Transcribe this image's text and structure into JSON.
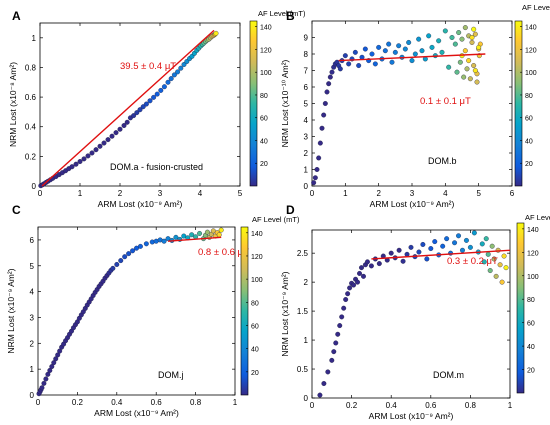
{
  "chart_data": [
    {
      "type": "scatter",
      "panel_label": "A",
      "sample_label": "DOM.a - fusion-crusted",
      "fit_label": "39.5 ± 0.4 μT",
      "xlabel": "ARM Lost (x10⁻⁹ Am²)",
      "ylabel": "NRM Lost (x10⁻⁸ Am²)",
      "xlim": [
        0,
        5
      ],
      "ylim": [
        0,
        1.1
      ],
      "xticks": [
        "0",
        "1",
        "2",
        "3",
        "4",
        "5"
      ],
      "yticks": [
        "0",
        "0.2",
        "0.4",
        "0.6",
        "0.8",
        "1"
      ],
      "xtick_values": [
        0,
        1,
        2,
        3,
        4,
        5
      ],
      "ytick_values": [
        0,
        0.2,
        0.4,
        0.6,
        0.8,
        1.0
      ],
      "fit_line": {
        "x": [
          0.05,
          4.35
        ],
        "y": [
          0.0,
          1.05
        ]
      },
      "points": {
        "x": [
          0.02,
          0.06,
          0.1,
          0.15,
          0.2,
          0.26,
          0.32,
          0.4,
          0.48,
          0.56,
          0.64,
          0.72,
          0.8,
          0.9,
          1.0,
          1.1,
          1.2,
          1.3,
          1.4,
          1.5,
          1.6,
          1.7,
          1.8,
          1.9,
          2.0,
          2.1,
          2.18,
          2.26,
          2.34,
          2.42,
          2.5,
          2.58,
          2.66,
          2.75,
          2.84,
          2.93,
          3.02,
          3.11,
          3.2,
          3.28,
          3.36,
          3.44,
          3.52,
          3.6,
          3.67,
          3.74,
          3.8,
          3.86,
          3.92,
          3.97,
          4.02,
          4.06,
          4.1,
          4.14,
          4.18,
          4.22,
          4.26,
          4.3,
          4.33,
          4.36,
          4.38,
          4.4
        ],
        "y": [
          0.002,
          0.008,
          0.015,
          0.024,
          0.032,
          0.042,
          0.052,
          0.064,
          0.077,
          0.09,
          0.103,
          0.117,
          0.13,
          0.147,
          0.165,
          0.183,
          0.203,
          0.223,
          0.245,
          0.268,
          0.29,
          0.313,
          0.336,
          0.36,
          0.383,
          0.408,
          0.43,
          0.46,
          0.475,
          0.495,
          0.515,
          0.535,
          0.553,
          0.575,
          0.598,
          0.62,
          0.645,
          0.67,
          0.7,
          0.725,
          0.75,
          0.77,
          0.795,
          0.82,
          0.84,
          0.86,
          0.875,
          0.895,
          0.915,
          0.93,
          0.945,
          0.955,
          0.965,
          0.975,
          0.985,
          0.99,
          1.0,
          1.01,
          1.015,
          1.02,
          1.025,
          1.03
        ],
        "af": [
          0,
          0,
          0,
          0,
          0,
          0,
          0,
          0,
          0,
          0,
          0,
          0,
          0,
          0,
          0,
          0,
          0,
          0,
          0,
          0,
          0,
          0,
          0,
          0,
          0,
          0,
          0,
          2,
          4,
          6,
          8,
          10,
          12,
          14,
          16,
          18,
          20,
          22,
          25,
          28,
          31,
          34,
          37,
          40,
          44,
          48,
          52,
          56,
          60,
          65,
          70,
          75,
          80,
          86,
          92,
          98,
          104,
          110,
          117,
          124,
          131,
          140
        ]
      },
      "colorbar": {
        "title": "AF Level (mT)",
        "ticks": [
          "20",
          "40",
          "60",
          "80",
          "100",
          "120",
          "140"
        ],
        "tick_values": [
          20,
          40,
          60,
          80,
          100,
          120,
          140
        ],
        "range": [
          0,
          145
        ]
      }
    },
    {
      "type": "scatter",
      "panel_label": "B",
      "sample_label": "DOM.b",
      "fit_label": "0.1 ± 0.1 μT",
      "xlabel": "ARM Lost (x10⁻⁹ Am²)",
      "ylabel": "NRM Lost (x10⁻¹⁰ Am²)",
      "xlim": [
        0,
        6
      ],
      "ylim": [
        0,
        10
      ],
      "xticks": [
        "0",
        "1",
        "2",
        "3",
        "4",
        "5",
        "6"
      ],
      "yticks": [
        "0",
        "1",
        "2",
        "3",
        "4",
        "5",
        "6",
        "7",
        "8",
        "9"
      ],
      "xtick_values": [
        0,
        1,
        2,
        3,
        4,
        5,
        6
      ],
      "ytick_values": [
        0,
        1,
        2,
        3,
        4,
        5,
        6,
        7,
        8,
        9
      ],
      "fit_line": {
        "x": [
          0.8,
          5.2
        ],
        "y": [
          7.6,
          8.0
        ]
      },
      "points": {
        "x": [
          0.05,
          0.1,
          0.15,
          0.2,
          0.25,
          0.3,
          0.35,
          0.4,
          0.45,
          0.5,
          0.55,
          0.6,
          0.65,
          0.7,
          0.75,
          0.8,
          0.85,
          0.9,
          1.0,
          1.1,
          1.2,
          1.3,
          1.4,
          1.5,
          1.6,
          1.7,
          1.8,
          1.9,
          2.0,
          2.1,
          2.2,
          2.3,
          2.4,
          2.5,
          2.6,
          2.7,
          2.8,
          2.9,
          3.0,
          3.1,
          3.2,
          3.3,
          3.4,
          3.5,
          3.6,
          3.7,
          3.8,
          3.9,
          4.0,
          4.1,
          4.2,
          4.3,
          4.35,
          4.4,
          4.45,
          4.5,
          4.55,
          4.6,
          4.65,
          4.7,
          4.75,
          4.8,
          4.85,
          4.9,
          4.95,
          5.0,
          5.02,
          5.05,
          4.6,
          4.7,
          4.8,
          4.9,
          5.0,
          4.5,
          4.85,
          4.95
        ],
        "y": [
          0.2,
          0.5,
          1.0,
          1.7,
          2.6,
          3.5,
          4.3,
          5.0,
          5.7,
          6.2,
          6.6,
          6.9,
          7.2,
          7.4,
          7.5,
          7.3,
          7.1,
          7.6,
          7.9,
          7.4,
          7.7,
          8.1,
          7.3,
          7.8,
          8.3,
          7.6,
          8.0,
          7.4,
          8.4,
          7.7,
          8.2,
          8.6,
          7.5,
          8.1,
          8.5,
          7.8,
          8.3,
          8.7,
          7.6,
          8.0,
          8.9,
          8.2,
          7.7,
          9.1,
          8.4,
          7.9,
          8.8,
          8.1,
          9.4,
          7.2,
          9.0,
          8.6,
          6.9,
          9.3,
          7.5,
          8.9,
          6.6,
          9.6,
          7.1,
          9.1,
          6.5,
          8.7,
          7.3,
          9.2,
          6.8,
          8.3,
          7.9,
          8.6,
          8.2,
          7.6,
          9.0,
          7.0,
          8.4,
          7.9,
          9.5,
          6.3
        ],
        "af": [
          0,
          0,
          0,
          0,
          0,
          0,
          0,
          0,
          0,
          0,
          0,
          1,
          2,
          3,
          4,
          5,
          6,
          7,
          8,
          9,
          10,
          11,
          12,
          14,
          16,
          18,
          20,
          22,
          24,
          26,
          28,
          30,
          32,
          34,
          36,
          38,
          40,
          42,
          44,
          46,
          48,
          50,
          52,
          55,
          58,
          61,
          64,
          67,
          70,
          73,
          76,
          79,
          82,
          85,
          88,
          91,
          94,
          97,
          100,
          103,
          106,
          109,
          112,
          115,
          118,
          121,
          124,
          127,
          130,
          133,
          136,
          139,
          141,
          143,
          145,
          110
        ]
      },
      "colorbar": {
        "title": "AF Level (mT)",
        "ticks": [
          "20",
          "40",
          "60",
          "80",
          "100",
          "120",
          "140"
        ],
        "tick_values": [
          20,
          40,
          60,
          80,
          100,
          120,
          140
        ],
        "range": [
          0,
          145
        ]
      }
    },
    {
      "type": "scatter",
      "panel_label": "C",
      "sample_label": "DOM.j",
      "fit_label": "0.8 ± 0.6 μT",
      "xlabel": "ARM Lost (x10⁻⁹ Am²)",
      "ylabel": "NRM Lost (x10⁻⁹ Am²)",
      "xlim": [
        0,
        1
      ],
      "ylim": [
        0,
        6.5
      ],
      "xticks": [
        "0",
        "0.2",
        "0.4",
        "0.6",
        "0.8",
        "1"
      ],
      "yticks": [
        "0",
        "1",
        "2",
        "3",
        "4",
        "5",
        "6"
      ],
      "xtick_values": [
        0,
        0.2,
        0.4,
        0.6,
        0.8,
        1.0
      ],
      "ytick_values": [
        0,
        1,
        2,
        3,
        4,
        5,
        6
      ],
      "fit_line": {
        "x": [
          0.66,
          0.93
        ],
        "y": [
          5.95,
          6.1
        ]
      },
      "points": {
        "x": [
          0.005,
          0.01,
          0.015,
          0.02,
          0.03,
          0.04,
          0.05,
          0.06,
          0.07,
          0.08,
          0.09,
          0.1,
          0.11,
          0.12,
          0.13,
          0.14,
          0.15,
          0.16,
          0.17,
          0.18,
          0.19,
          0.2,
          0.21,
          0.22,
          0.23,
          0.24,
          0.25,
          0.26,
          0.27,
          0.28,
          0.29,
          0.3,
          0.31,
          0.32,
          0.33,
          0.34,
          0.35,
          0.36,
          0.37,
          0.38,
          0.4,
          0.42,
          0.44,
          0.46,
          0.48,
          0.5,
          0.52,
          0.55,
          0.58,
          0.6,
          0.62,
          0.64,
          0.66,
          0.68,
          0.7,
          0.72,
          0.74,
          0.76,
          0.78,
          0.8,
          0.82,
          0.84,
          0.85,
          0.86,
          0.87,
          0.88,
          0.89,
          0.9,
          0.91,
          0.92,
          0.93
        ],
        "y": [
          0.05,
          0.12,
          0.2,
          0.28,
          0.45,
          0.62,
          0.8,
          0.95,
          1.1,
          1.25,
          1.4,
          1.55,
          1.7,
          1.85,
          1.97,
          2.1,
          2.22,
          2.35,
          2.47,
          2.6,
          2.72,
          2.83,
          2.97,
          3.1,
          3.22,
          3.35,
          3.48,
          3.6,
          3.72,
          3.85,
          3.97,
          4.08,
          4.2,
          4.3,
          4.4,
          4.52,
          4.62,
          4.72,
          4.82,
          4.9,
          5.05,
          5.2,
          5.35,
          5.47,
          5.58,
          5.68,
          5.75,
          5.85,
          5.92,
          5.95,
          6.0,
          5.95,
          6.05,
          5.98,
          6.1,
          6.02,
          6.15,
          6.08,
          6.2,
          6.12,
          6.25,
          6.05,
          6.18,
          6.3,
          6.1,
          6.22,
          6.35,
          6.15,
          6.28,
          6.2,
          6.38
        ],
        "af": [
          0,
          0,
          0,
          0,
          0,
          0,
          0,
          0,
          0,
          0,
          0,
          0,
          0,
          0,
          0,
          0,
          0,
          0,
          0,
          0,
          0,
          0,
          0,
          0,
          0,
          0,
          0,
          0,
          0,
          0,
          0,
          0,
          0,
          0,
          0,
          0,
          0,
          2,
          4,
          6,
          8,
          10,
          12,
          14,
          16,
          18,
          20,
          22,
          24,
          26,
          30,
          34,
          38,
          42,
          46,
          50,
          55,
          60,
          66,
          72,
          78,
          84,
          90,
          96,
          102,
          108,
          114,
          120,
          126,
          133,
          140
        ]
      },
      "colorbar": {
        "title": "AF Level (mT)",
        "ticks": [
          "20",
          "40",
          "60",
          "80",
          "100",
          "120",
          "140"
        ],
        "tick_values": [
          20,
          40,
          60,
          80,
          100,
          120,
          140
        ],
        "range": [
          0,
          145
        ]
      }
    },
    {
      "type": "scatter",
      "panel_label": "D",
      "sample_label": "DOM.m",
      "fit_label": "0.3 ± 0.2 μT",
      "xlabel": "ARM Lost (x10⁻⁹ Am²)",
      "ylabel": "NRM Lost (x10⁻⁹ Am²)",
      "xlim": [
        0,
        1
      ],
      "ylim": [
        0,
        2.9
      ],
      "xticks": [
        "0",
        "0.2",
        "0.4",
        "0.6",
        "0.8",
        "1"
      ],
      "yticks": [
        "0",
        "0.5",
        "1",
        "1.5",
        "2",
        "2.5"
      ],
      "xtick_values": [
        0,
        0.2,
        0.4,
        0.6,
        0.8,
        1.0
      ],
      "ytick_values": [
        0,
        0.5,
        1.0,
        1.5,
        2.0,
        2.5
      ],
      "fit_line": {
        "x": [
          0.3,
          1.0
        ],
        "y": [
          2.4,
          2.55
        ]
      },
      "points": {
        "x": [
          0.04,
          0.06,
          0.08,
          0.1,
          0.11,
          0.12,
          0.13,
          0.14,
          0.15,
          0.16,
          0.17,
          0.18,
          0.19,
          0.2,
          0.21,
          0.22,
          0.23,
          0.24,
          0.25,
          0.26,
          0.27,
          0.28,
          0.3,
          0.32,
          0.34,
          0.36,
          0.38,
          0.4,
          0.42,
          0.44,
          0.46,
          0.48,
          0.5,
          0.52,
          0.54,
          0.56,
          0.58,
          0.6,
          0.62,
          0.64,
          0.66,
          0.68,
          0.7,
          0.72,
          0.74,
          0.76,
          0.78,
          0.8,
          0.82,
          0.84,
          0.86,
          0.87,
          0.88,
          0.89,
          0.9,
          0.91,
          0.92,
          0.93,
          0.94,
          0.95,
          0.96,
          0.97,
          0.98
        ],
        "y": [
          0.05,
          0.25,
          0.45,
          0.65,
          0.8,
          0.95,
          1.1,
          1.25,
          1.4,
          1.55,
          1.7,
          1.8,
          1.9,
          1.98,
          1.95,
          2.05,
          2.0,
          2.15,
          2.25,
          2.1,
          2.3,
          2.35,
          2.28,
          2.4,
          2.32,
          2.45,
          2.38,
          2.5,
          2.42,
          2.55,
          2.36,
          2.48,
          2.6,
          2.44,
          2.52,
          2.65,
          2.4,
          2.58,
          2.7,
          2.47,
          2.62,
          2.75,
          2.5,
          2.68,
          2.8,
          2.55,
          2.72,
          2.6,
          2.85,
          2.52,
          2.66,
          2.35,
          2.75,
          2.48,
          2.2,
          2.62,
          2.4,
          2.1,
          2.55,
          2.3,
          2.0,
          2.45,
          2.25
        ],
        "af": [
          0,
          0,
          0,
          0,
          0,
          0,
          0,
          0,
          0,
          0,
          0,
          0,
          0,
          0,
          0,
          0,
          0,
          0,
          0,
          0,
          0,
          0,
          0,
          0,
          0,
          0,
          0,
          0,
          0,
          0,
          2,
          4,
          6,
          8,
          10,
          12,
          14,
          16,
          18,
          20,
          22,
          25,
          28,
          31,
          34,
          38,
          42,
          46,
          50,
          56,
          62,
          68,
          74,
          80,
          86,
          92,
          98,
          104,
          110,
          118,
          126,
          134,
          142
        ]
      },
      "colorbar": {
        "title": "AF Level (mT)",
        "ticks": [
          "20",
          "40",
          "60",
          "80",
          "100",
          "120",
          "140"
        ],
        "tick_values": [
          20,
          40,
          60,
          80,
          100,
          120,
          140
        ],
        "range": [
          0,
          145
        ]
      }
    }
  ]
}
